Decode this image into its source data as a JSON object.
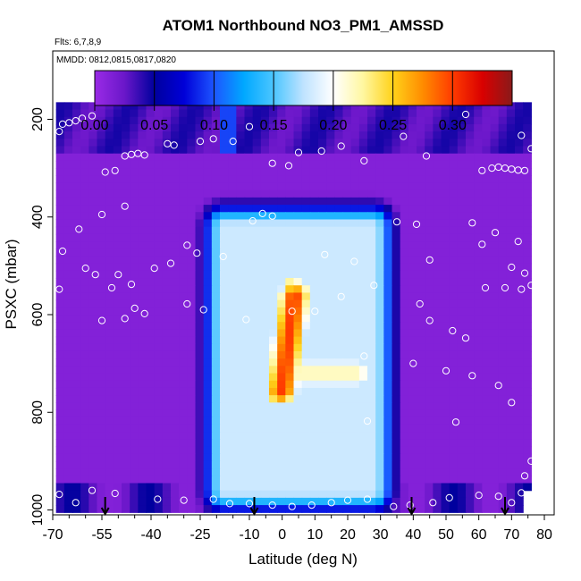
{
  "chart_data": {
    "type": "heatmap",
    "title": "ATOM1 Northbound NO3_PM1_AMSSD",
    "notes": {
      "flights": "Flts: 6,7,8,9",
      "dates": "MMDD: 0812,0815,0817,0820"
    },
    "xlabel": "Latitude (deg N)",
    "ylabel": "PSXC (mbar)",
    "xlim": [
      -70,
      83
    ],
    "ylim": [
      1010,
      60
    ],
    "x_ticks": [
      -70,
      -55,
      -40,
      -25,
      -10,
      0,
      10,
      20,
      30,
      40,
      50,
      60,
      70,
      80
    ],
    "x_minor_ticks": [
      -65,
      -60,
      -50,
      -45,
      -35,
      -30,
      -20,
      -15,
      -5,
      5,
      15,
      25,
      35,
      45,
      55,
      65,
      75
    ],
    "x_tick_labels": [
      "-70",
      "-55",
      "-40",
      "-25",
      "-10",
      "0",
      "10",
      "20",
      "30",
      "40",
      "50",
      "60",
      "70",
      "80"
    ],
    "y_ticks": [
      200,
      400,
      600,
      800,
      1000
    ],
    "y_tick_labels": [
      "200",
      "400",
      "600",
      "800",
      "1000"
    ],
    "colorbar": {
      "range": [
        0,
        0.35
      ],
      "ticks": [
        0.0,
        0.05,
        0.1,
        0.15,
        0.2,
        0.25,
        0.3
      ],
      "tick_labels": [
        "0.00",
        "0.05",
        "0.10",
        "0.15",
        "0.20",
        "0.25",
        "0.30"
      ],
      "colors": [
        "#9a2be6",
        "#6a17c9",
        "#00009e",
        "#0000d8",
        "#1d55ff",
        "#00a8ff",
        "#4cc6ff",
        "#bfe3ff",
        "#ffffff",
        "#fff7a0",
        "#ffd21a",
        "#ff8c00",
        "#ff3b00",
        "#d90000",
        "#8a1a1a"
      ]
    },
    "field": {
      "background_value": 0.012,
      "domain": {
        "lat": [
          -69,
          76
        ],
        "p": [
          165,
          1000
        ]
      },
      "upper_band": {
        "lat": [
          -69,
          76
        ],
        "p": [
          165,
          270
        ],
        "value": 0.045
      },
      "plume_core": {
        "lat": [
          3,
          5.5
        ],
        "p": [
          500,
          720
        ],
        "value": 0.3
      },
      "plume_body": {
        "lat": [
          -18,
          28
        ],
        "p": [
          420,
          960
        ],
        "value": 0.18
      },
      "lower_band": {
        "lat": [
          -69,
          76
        ],
        "p": [
          945,
          1000
        ],
        "value": 0.05
      }
    },
    "samples": [
      [
        -68,
        225
      ],
      [
        -67,
        210
      ],
      [
        -65,
        207
      ],
      [
        -63,
        203
      ],
      [
        -61,
        198
      ],
      [
        -58,
        193
      ],
      [
        -54,
        308
      ],
      [
        -51,
        305
      ],
      [
        -48,
        275
      ],
      [
        -46,
        272
      ],
      [
        -44,
        270
      ],
      [
        -42,
        273
      ],
      [
        -35,
        250
      ],
      [
        -33,
        253
      ],
      [
        -25,
        245
      ],
      [
        -21,
        240
      ],
      [
        -15,
        245
      ],
      [
        -10,
        215
      ],
      [
        -3,
        290
      ],
      [
        2,
        295
      ],
      [
        5,
        268
      ],
      [
        12,
        265
      ],
      [
        18,
        255
      ],
      [
        25,
        285
      ],
      [
        37,
        235
      ],
      [
        44,
        275
      ],
      [
        56,
        190
      ],
      [
        61,
        305
      ],
      [
        64,
        300
      ],
      [
        66,
        298
      ],
      [
        68,
        300
      ],
      [
        70,
        302
      ],
      [
        72,
        304
      ],
      [
        74,
        305
      ],
      [
        76,
        260
      ],
      [
        73,
        233
      ],
      [
        -55,
        395
      ],
      [
        -48,
        378
      ],
      [
        -62,
        425
      ],
      [
        -67,
        470
      ],
      [
        -60,
        505
      ],
      [
        -57,
        518
      ],
      [
        -50,
        518
      ],
      [
        -46,
        538
      ],
      [
        -39,
        505
      ],
      [
        -34,
        495
      ],
      [
        -29,
        458
      ],
      [
        -26,
        474
      ],
      [
        -18,
        481
      ],
      [
        -9,
        408
      ],
      [
        -6,
        393
      ],
      [
        -3,
        398
      ],
      [
        13,
        477
      ],
      [
        22,
        491
      ],
      [
        35,
        410
      ],
      [
        41,
        415
      ],
      [
        45,
        488
      ],
      [
        58,
        412
      ],
      [
        61,
        456
      ],
      [
        65,
        432
      ],
      [
        72,
        450
      ],
      [
        70,
        503
      ],
      [
        74,
        515
      ],
      [
        -68,
        548
      ],
      [
        -52,
        545
      ],
      [
        -45,
        587
      ],
      [
        -42,
        598
      ],
      [
        -48,
        608
      ],
      [
        -55,
        612
      ],
      [
        -29,
        578
      ],
      [
        -24,
        590
      ],
      [
        -11,
        610
      ],
      [
        3,
        593
      ],
      [
        10,
        593
      ],
      [
        18,
        563
      ],
      [
        28,
        540
      ],
      [
        42,
        578
      ],
      [
        45,
        612
      ],
      [
        52,
        633
      ],
      [
        56,
        648
      ],
      [
        62,
        545
      ],
      [
        68,
        545
      ],
      [
        73,
        548
      ],
      [
        76,
        540
      ],
      [
        25,
        685
      ],
      [
        40,
        700
      ],
      [
        50,
        715
      ],
      [
        58,
        725
      ],
      [
        66,
        745
      ],
      [
        70,
        780
      ],
      [
        53,
        820
      ],
      [
        26,
        818
      ],
      [
        76,
        900
      ],
      [
        78,
        910
      ],
      [
        74,
        930
      ],
      [
        73,
        965
      ],
      [
        -68,
        968
      ],
      [
        -63,
        985
      ],
      [
        -58,
        960
      ],
      [
        -51,
        966
      ],
      [
        -38,
        978
      ],
      [
        -30,
        980
      ],
      [
        -21,
        978
      ],
      [
        -16,
        987
      ],
      [
        -10,
        987
      ],
      [
        -3,
        990
      ],
      [
        3,
        993
      ],
      [
        9,
        990
      ],
      [
        15,
        985
      ],
      [
        20,
        980
      ],
      [
        26,
        978
      ],
      [
        34,
        993
      ],
      [
        39,
        990
      ],
      [
        46,
        985
      ],
      [
        51,
        975
      ],
      [
        60,
        970
      ],
      [
        66,
        972
      ],
      [
        70,
        985
      ]
    ],
    "arrows_lat": [
      -54,
      -8.5,
      39.5,
      68
    ]
  }
}
